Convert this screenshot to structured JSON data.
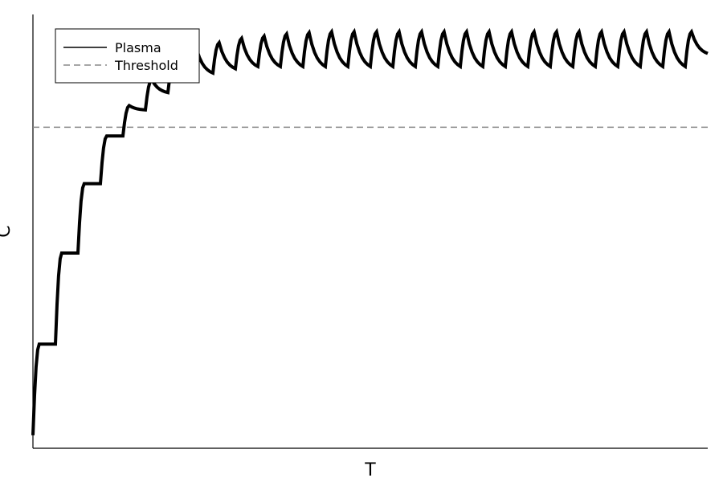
{
  "chart_data": {
    "type": "line",
    "xlabel": "T",
    "ylabel": "C",
    "xlim": [
      0,
      30
    ],
    "ylim": [
      0,
      1
    ],
    "grid": false,
    "legend": {
      "placement": "top-left"
    },
    "series": [
      {
        "name": "Plasma",
        "color": "#000000",
        "style": "solid",
        "dosing_interval": 1,
        "x": [
          0,
          1,
          2,
          3,
          4,
          5,
          6,
          7,
          8,
          9,
          10,
          11,
          12,
          13,
          14,
          15,
          16,
          17,
          18,
          19,
          20,
          21,
          22,
          23,
          24,
          25,
          26,
          27,
          28,
          29,
          30
        ],
        "peaks": [
          0.24,
          0.45,
          0.61,
          0.72,
          0.79,
          0.85,
          0.89,
          0.92,
          0.935,
          0.945,
          0.95,
          0.955,
          0.958,
          0.96,
          0.96,
          0.96,
          0.96,
          0.96,
          0.96,
          0.96,
          0.96,
          0.96,
          0.96,
          0.96,
          0.96,
          0.96,
          0.96,
          0.96,
          0.96,
          0.96
        ],
        "troughs": [
          0.03,
          0.24,
          0.45,
          0.61,
          0.72,
          0.78,
          0.82,
          0.85,
          0.865,
          0.875,
          0.88,
          0.88,
          0.88,
          0.88,
          0.88,
          0.88,
          0.88,
          0.88,
          0.88,
          0.88,
          0.88,
          0.88,
          0.88,
          0.88,
          0.88,
          0.88,
          0.88,
          0.88,
          0.88,
          0.88,
          0.91
        ]
      },
      {
        "name": "Threshold",
        "color": "#888888",
        "style": "dashed",
        "x": [
          0,
          30
        ],
        "y": [
          0.74,
          0.74
        ]
      }
    ]
  }
}
